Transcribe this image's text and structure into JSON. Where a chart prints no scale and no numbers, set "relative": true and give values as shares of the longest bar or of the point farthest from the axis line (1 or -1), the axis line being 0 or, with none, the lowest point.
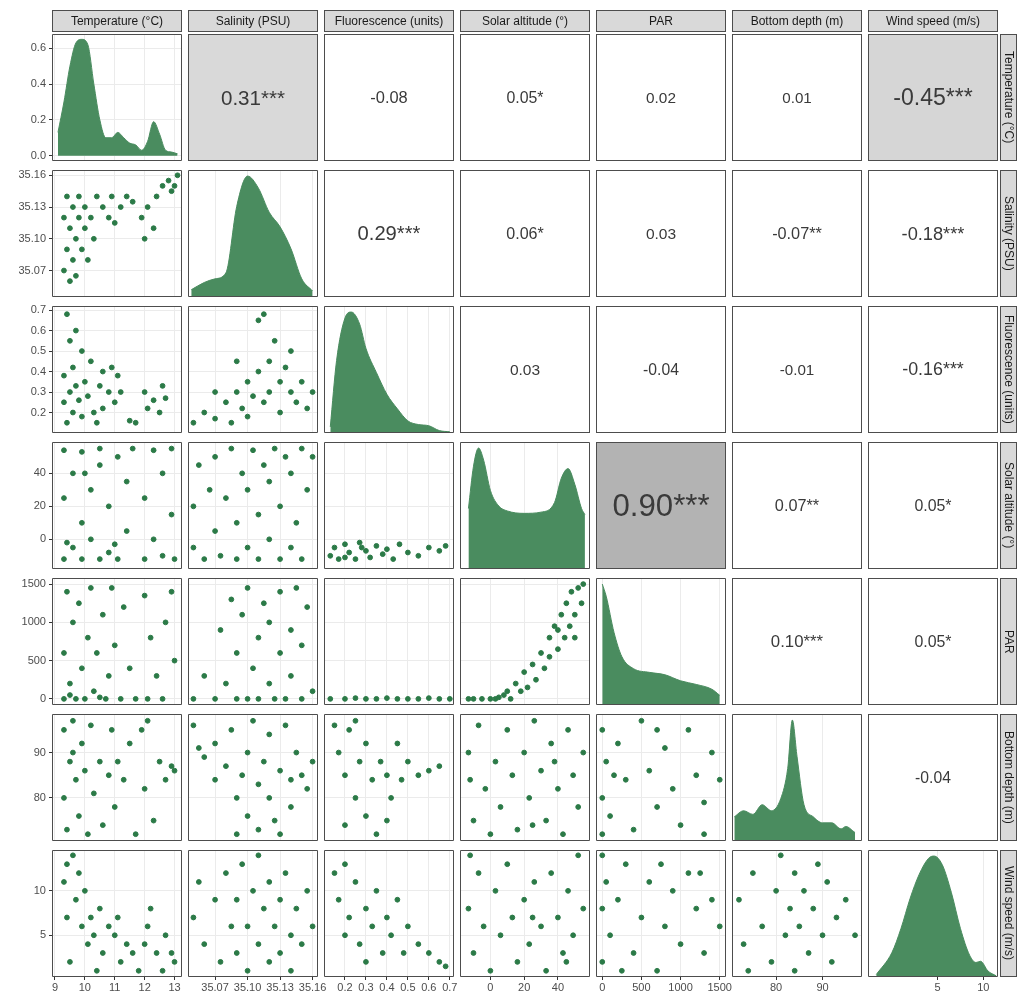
{
  "chart_data": [
    {
      "type": "area",
      "color": "#4a8c5f",
      "x": [
        9.1,
        9.3,
        9.5,
        9.7,
        9.9,
        10.1,
        10.3,
        10.5,
        10.7,
        10.9,
        11.1,
        11.3,
        11.5,
        11.7,
        11.9,
        12.1,
        12.3,
        12.5,
        12.7,
        12.9,
        13.1
      ],
      "values": [
        0.13,
        0.3,
        0.5,
        0.63,
        0.65,
        0.62,
        0.4,
        0.2,
        0.1,
        0.1,
        0.13,
        0.1,
        0.07,
        0.06,
        0.03,
        0.08,
        0.19,
        0.12,
        0.03,
        0.02,
        0.01
      ],
      "xlim": [
        8.9,
        13.25
      ],
      "xticks": [
        9,
        10,
        11,
        12,
        13
      ],
      "ylim": [
        -0.03,
        0.68
      ],
      "yticks": [
        {
          "value": 0,
          "label": "0.0"
        },
        0.2,
        0.4,
        0.6
      ],
      "tick_labels": "y",
      "grid": true
    },
    {
      "type": "scatter",
      "color": "#2b7a47",
      "marker": "circle",
      "x": [
        9.3,
        9.3,
        9.4,
        9.4,
        9.5,
        9.5,
        9.6,
        9.6,
        9.7,
        9.7,
        9.8,
        9.8,
        9.9,
        10.0,
        10.0,
        10.1,
        10.2,
        10.3,
        10.4,
        10.6,
        10.8,
        10.9,
        11.0,
        11.2,
        11.4,
        11.6,
        11.9,
        12.0,
        12.1,
        12.3,
        12.4,
        12.6,
        12.8,
        13.0,
        13.1,
        12.9
      ],
      "values": [
        35.07,
        35.12,
        35.09,
        35.14,
        35.06,
        35.11,
        35.13,
        35.08,
        35.1,
        35.065,
        35.12,
        35.14,
        35.09,
        35.11,
        35.13,
        35.08,
        35.12,
        35.1,
        35.14,
        35.13,
        35.12,
        35.14,
        35.115,
        35.13,
        35.14,
        35.135,
        35.12,
        35.1,
        35.13,
        35.11,
        35.14,
        35.15,
        35.155,
        35.15,
        35.16,
        35.145
      ],
      "xlim": [
        8.9,
        13.25
      ],
      "xticks": [
        9,
        10,
        11,
        12,
        13
      ],
      "ylim": [
        35.045,
        35.165
      ],
      "yticks": [
        35.07,
        {
          "value": 35.1,
          "label": "35.10"
        },
        35.13,
        35.16
      ],
      "tick_labels": "y",
      "grid": true
    },
    {
      "type": "area",
      "color": "#4a8c5f",
      "relative": true,
      "x": [
        35.048,
        35.06,
        35.07,
        35.08,
        35.09,
        35.1,
        35.11,
        35.12,
        35.13,
        35.14,
        35.15,
        35.16
      ],
      "values": [
        0.06,
        0.12,
        0.15,
        0.2,
        0.75,
        1,
        0.9,
        0.7,
        0.58,
        0.4,
        0.15,
        0.05
      ],
      "xlim": [
        35.045,
        35.165
      ],
      "xticks": [
        35.07,
        35.1,
        35.13,
        35.16
      ],
      "tick_labels": false,
      "grid": "x"
    },
    {
      "type": "scatter",
      "color": "#2b7a47",
      "marker": "circle",
      "x": [
        9.3,
        9.3,
        9.4,
        9.4,
        9.5,
        9.5,
        9.6,
        9.6,
        9.7,
        9.8,
        9.9,
        9.9,
        10.0,
        10.1,
        10.2,
        10.3,
        10.5,
        10.6,
        10.6,
        10.8,
        10.9,
        11.0,
        11.1,
        11.2,
        11.5,
        11.7,
        12.0,
        12.1,
        12.3,
        12.5,
        12.6,
        12.7,
        10.4,
        9.7
      ],
      "values": [
        0.38,
        0.25,
        0.68,
        0.15,
        0.3,
        0.55,
        0.2,
        0.42,
        0.33,
        0.26,
        0.5,
        0.18,
        0.35,
        0.28,
        0.45,
        0.2,
        0.33,
        0.4,
        0.22,
        0.3,
        0.42,
        0.25,
        0.38,
        0.3,
        0.16,
        0.15,
        0.3,
        0.22,
        0.26,
        0.2,
        0.33,
        0.27,
        0.15,
        0.6
      ],
      "xlim": [
        8.9,
        13.25
      ],
      "xticks": [
        9,
        10,
        11,
        12,
        13
      ],
      "ylim": [
        0.1,
        0.72
      ],
      "yticks": [
        0.2,
        0.3,
        0.4,
        0.5,
        0.6,
        0.7
      ],
      "tick_labels": "y",
      "grid": true
    },
    {
      "type": "scatter",
      "color": "#2b7a47",
      "marker": "circle",
      "x": [
        35.05,
        35.06,
        35.07,
        35.08,
        35.085,
        35.09,
        35.095,
        35.1,
        35.1,
        35.105,
        35.11,
        35.11,
        35.115,
        35.12,
        35.12,
        35.125,
        35.13,
        35.13,
        35.135,
        35.14,
        35.14,
        35.145,
        35.15,
        35.155,
        35.16,
        35.07,
        35.115,
        35.09
      ],
      "values": [
        0.15,
        0.2,
        0.17,
        0.25,
        0.15,
        0.3,
        0.22,
        0.35,
        0.18,
        0.28,
        0.4,
        0.65,
        0.25,
        0.45,
        0.3,
        0.55,
        0.35,
        0.2,
        0.42,
        0.3,
        0.5,
        0.25,
        0.35,
        0.22,
        0.3,
        0.3,
        0.68,
        0.45
      ],
      "xlim": [
        35.045,
        35.165
      ],
      "xticks": [
        35.07,
        35.1,
        35.13,
        35.16
      ],
      "ylim": [
        0.1,
        0.72
      ],
      "yticks": [
        0.2,
        0.3,
        0.4,
        0.5,
        0.6,
        0.7
      ],
      "tick_labels": false,
      "grid": true
    },
    {
      "type": "area",
      "color": "#4a8c5f",
      "relative": true,
      "x": [
        0.13,
        0.16,
        0.2,
        0.23,
        0.27,
        0.3,
        0.35,
        0.4,
        0.45,
        0.5,
        0.55,
        0.6,
        0.65,
        0.7
      ],
      "values": [
        0.05,
        0.6,
        0.95,
        1,
        0.9,
        0.7,
        0.5,
        0.32,
        0.2,
        0.1,
        0.07,
        0.06,
        0.02,
        0.01
      ],
      "xlim": [
        0.1,
        0.72
      ],
      "xticks": [
        0.2,
        0.3,
        0.4,
        0.5,
        0.6,
        0.7
      ],
      "tick_labels": false,
      "grid": "x"
    },
    {
      "type": "scatter",
      "color": "#2b7a47",
      "marker": "circle",
      "x": [
        9.3,
        9.3,
        9.3,
        9.6,
        9.6,
        9.9,
        9.9,
        9.9,
        10.2,
        10.2,
        10.5,
        10.5,
        10.5,
        10.8,
        10.8,
        11.1,
        11.1,
        11.4,
        11.4,
        11.6,
        12.0,
        12.0,
        12.3,
        12.3,
        12.6,
        12.6,
        12.9,
        12.9,
        13.0,
        9.4,
        10.0,
        11.0
      ],
      "values": [
        -12,
        25,
        54,
        -5,
        40,
        -12,
        10,
        53,
        0,
        30,
        -12,
        45,
        55,
        -8,
        20,
        -12,
        50,
        5,
        35,
        55,
        -12,
        25,
        54,
        0,
        -10,
        40,
        55,
        15,
        -12,
        -2,
        40,
        -3
      ],
      "xlim": [
        8.9,
        13.25
      ],
      "xticks": [
        9,
        10,
        11,
        12,
        13
      ],
      "ylim": [
        -18,
        59
      ],
      "yticks": [
        0,
        20,
        40
      ],
      "tick_labels": "y",
      "grid": true
    },
    {
      "type": "scatter",
      "color": "#2b7a47",
      "marker": "circle",
      "x": [
        35.05,
        35.05,
        35.055,
        35.06,
        35.065,
        35.07,
        35.07,
        35.075,
        35.08,
        35.085,
        35.09,
        35.09,
        35.095,
        35.1,
        35.1,
        35.105,
        35.11,
        35.11,
        35.115,
        35.12,
        35.12,
        35.125,
        35.13,
        35.13,
        35.135,
        35.14,
        35.14,
        35.145,
        35.15,
        35.15,
        35.155,
        35.16
      ],
      "values": [
        20,
        -5,
        45,
        -12,
        30,
        5,
        50,
        -10,
        25,
        55,
        -12,
        10,
        40,
        -5,
        30,
        54,
        -12,
        15,
        45,
        0,
        35,
        55,
        -12,
        20,
        50,
        -5,
        40,
        10,
        55,
        -12,
        30,
        50
      ],
      "xlim": [
        35.045,
        35.165
      ],
      "xticks": [
        35.07,
        35.1,
        35.13,
        35.16
      ],
      "ylim": [
        -18,
        59
      ],
      "yticks": [
        0,
        20,
        40
      ],
      "tick_labels": false,
      "grid": true
    },
    {
      "type": "scatter",
      "color": "#2b7a47",
      "marker": "circle",
      "x": [
        0.13,
        0.15,
        0.17,
        0.2,
        0.22,
        0.25,
        0.27,
        0.3,
        0.32,
        0.35,
        0.38,
        0.4,
        0.43,
        0.46,
        0.5,
        0.55,
        0.6,
        0.65,
        0.68,
        0.2,
        0.28
      ],
      "values": [
        -10,
        -5,
        -12,
        -3,
        -8,
        -12,
        -2,
        -7,
        -11,
        -4,
        -9,
        -6,
        -12,
        -3,
        -8,
        -10,
        -5,
        -7,
        -4,
        -11,
        -5
      ],
      "xlim": [
        0.1,
        0.72
      ],
      "xticks": [
        0.2,
        0.3,
        0.4,
        0.5,
        0.6,
        0.7
      ],
      "ylim": [
        -18,
        59
      ],
      "yticks": [
        0,
        20,
        40
      ],
      "tick_labels": false,
      "grid": true
    },
    {
      "type": "area",
      "color": "#4a8c5f",
      "relative": true,
      "x": [
        -13,
        -10,
        -7,
        -4,
        0,
        5,
        10,
        20,
        30,
        38,
        42,
        46,
        50,
        54,
        56
      ],
      "values": [
        0.5,
        0.85,
        1,
        0.9,
        0.65,
        0.52,
        0.48,
        0.46,
        0.47,
        0.55,
        0.75,
        0.83,
        0.7,
        0.5,
        0.45
      ],
      "xlim": [
        -18,
        59
      ],
      "xticks": [
        0,
        20,
        40
      ],
      "tick_labels": false,
      "grid": "x"
    },
    {
      "type": "scatter",
      "color": "#2b7a47",
      "marker": "circle",
      "x": [
        9.3,
        9.3,
        9.4,
        9.5,
        9.6,
        9.7,
        9.8,
        9.9,
        10.0,
        10.1,
        10.2,
        10.3,
        10.4,
        10.6,
        10.7,
        10.8,
        10.9,
        11.0,
        11.2,
        11.3,
        11.5,
        11.7,
        12.0,
        12.1,
        12.2,
        12.4,
        12.6,
        12.7,
        12.9,
        13.0,
        9.5,
        10.5
      ],
      "values": [
        0,
        600,
        1400,
        200,
        1000,
        0,
        1250,
        400,
        0,
        800,
        1450,
        100,
        600,
        1100,
        0,
        300,
        1450,
        700,
        0,
        1200,
        400,
        0,
        1350,
        0,
        800,
        300,
        0,
        1000,
        1400,
        500,
        50,
        20
      ],
      "xlim": [
        8.9,
        13.25
      ],
      "xticks": [
        9,
        10,
        11,
        12,
        13
      ],
      "ylim": [
        -80,
        1580
      ],
      "yticks": [
        0,
        500,
        1000,
        1500
      ],
      "tick_labels": "y",
      "grid": true
    },
    {
      "type": "scatter",
      "color": "#2b7a47",
      "marker": "circle",
      "x": [
        35.05,
        35.06,
        35.07,
        35.075,
        35.08,
        35.085,
        35.09,
        35.09,
        35.095,
        35.1,
        35.1,
        35.105,
        35.11,
        35.11,
        35.115,
        35.12,
        35.12,
        35.125,
        35.13,
        35.13,
        35.135,
        35.14,
        35.14,
        35.145,
        35.15,
        35.15,
        35.155,
        35.16
      ],
      "values": [
        0,
        300,
        0,
        900,
        200,
        1300,
        0,
        600,
        1100,
        0,
        1450,
        400,
        800,
        0,
        1250,
        200,
        1000,
        0,
        600,
        1400,
        0,
        300,
        900,
        1450,
        0,
        700,
        1200,
        100
      ],
      "xlim": [
        35.045,
        35.165
      ],
      "xticks": [
        35.07,
        35.1,
        35.13,
        35.16
      ],
      "ylim": [
        -80,
        1580
      ],
      "yticks": [
        0,
        500,
        1000,
        1500
      ],
      "tick_labels": false,
      "grid": true
    },
    {
      "type": "scatter",
      "color": "#2b7a47",
      "marker": "circle",
      "x": [
        0.13,
        0.2,
        0.25,
        0.3,
        0.35,
        0.4,
        0.45,
        0.5,
        0.55,
        0.6,
        0.65,
        0.7
      ],
      "values": [
        0,
        0,
        10,
        0,
        0,
        10,
        0,
        0,
        0,
        10,
        0,
        0
      ],
      "xlim": [
        0.1,
        0.72
      ],
      "xticks": [
        0.2,
        0.3,
        0.4,
        0.5,
        0.6,
        0.7
      ],
      "ylim": [
        -80,
        1580
      ],
      "yticks": [
        0,
        500,
        1000,
        1500
      ],
      "tick_labels": false,
      "grid": true
    },
    {
      "type": "scatter",
      "color": "#2b7a47",
      "marker": "circle",
      "x": [
        -13,
        -10,
        -5,
        0,
        3,
        5,
        8,
        10,
        12,
        15,
        18,
        20,
        22,
        25,
        27,
        30,
        32,
        35,
        35,
        38,
        40,
        42,
        44,
        45,
        47,
        48,
        50,
        52,
        54,
        55,
        50,
        40
      ],
      "values": [
        0,
        0,
        0,
        0,
        0,
        20,
        50,
        100,
        0,
        200,
        100,
        350,
        150,
        450,
        250,
        600,
        400,
        800,
        550,
        950,
        650,
        1100,
        800,
        1250,
        950,
        1400,
        1100,
        1450,
        1250,
        1500,
        800,
        900
      ],
      "xlim": [
        -18,
        59
      ],
      "xticks": [
        0,
        20,
        40
      ],
      "ylim": [
        -80,
        1580
      ],
      "yticks": [
        0,
        500,
        1000,
        1500
      ],
      "tick_labels": false,
      "grid": true
    },
    {
      "type": "area",
      "color": "#4a8c5f",
      "relative": true,
      "x": [
        0,
        50,
        150,
        250,
        400,
        600,
        800,
        1000,
        1200,
        1400,
        1500
      ],
      "values": [
        1,
        0.9,
        0.6,
        0.4,
        0.3,
        0.27,
        0.25,
        0.2,
        0.17,
        0.13,
        0.08
      ],
      "xlim": [
        -80,
        1580
      ],
      "xticks": [
        0,
        500,
        1000,
        1500
      ],
      "tick_labels": false,
      "grid": "x"
    },
    {
      "type": "scatter",
      "color": "#2b7a47",
      "marker": "circle",
      "x": [
        9.3,
        9.3,
        9.4,
        9.5,
        9.6,
        9.7,
        9.8,
        9.9,
        10.0,
        10.1,
        10.2,
        10.3,
        10.5,
        10.6,
        10.8,
        10.9,
        11.0,
        11.1,
        11.3,
        11.5,
        11.7,
        11.9,
        12.0,
        12.1,
        12.3,
        12.5,
        12.7,
        12.9,
        13.0,
        9.6
      ],
      "values": [
        95,
        80,
        73,
        88,
        97,
        84,
        76,
        92,
        86,
        72,
        96,
        81,
        88,
        74,
        85,
        95,
        78,
        88,
        84,
        92,
        72,
        95,
        82,
        97,
        75,
        88,
        84,
        87,
        86,
        90
      ],
      "xlim": [
        8.9,
        13.25
      ],
      "xticks": [
        9,
        10,
        11,
        12,
        13
      ],
      "ylim": [
        70.5,
        98.5
      ],
      "yticks": [
        80,
        90
      ],
      "tick_labels": "y",
      "grid": true
    },
    {
      "type": "scatter",
      "color": "#2b7a47",
      "marker": "circle",
      "x": [
        35.05,
        35.055,
        35.06,
        35.07,
        35.08,
        35.085,
        35.09,
        35.09,
        35.095,
        35.1,
        35.1,
        35.105,
        35.11,
        35.11,
        35.115,
        35.12,
        35.12,
        35.125,
        35.13,
        35.13,
        35.135,
        35.14,
        35.14,
        35.145,
        35.15,
        35.155,
        35.16,
        35.07
      ],
      "values": [
        96,
        91,
        89,
        92,
        87,
        95,
        80,
        72,
        85,
        90,
        76,
        97,
        83,
        73,
        88,
        80,
        94,
        75,
        86,
        72,
        96,
        84,
        78,
        90,
        85,
        82,
        88,
        84
      ],
      "xlim": [
        35.045,
        35.165
      ],
      "xticks": [
        35.07,
        35.1,
        35.13,
        35.16
      ],
      "ylim": [
        70.5,
        98.5
      ],
      "yticks": [
        80,
        90
      ],
      "tick_labels": false,
      "grid": true
    },
    {
      "type": "scatter",
      "color": "#2b7a47",
      "marker": "circle",
      "x": [
        0.15,
        0.17,
        0.2,
        0.2,
        0.22,
        0.25,
        0.27,
        0.3,
        0.3,
        0.33,
        0.35,
        0.37,
        0.4,
        0.42,
        0.45,
        0.47,
        0.5,
        0.55,
        0.6,
        0.65,
        0.25,
        0.4
      ],
      "values": [
        96,
        90,
        85,
        74,
        95,
        80,
        88,
        76,
        92,
        84,
        72,
        88,
        85,
        80,
        92,
        84,
        88,
        85,
        86,
        87,
        97,
        75
      ],
      "xlim": [
        0.1,
        0.72
      ],
      "xticks": [
        0.2,
        0.3,
        0.4,
        0.5,
        0.6,
        0.7
      ],
      "ylim": [
        70.5,
        98.5
      ],
      "yticks": [
        80,
        90
      ],
      "tick_labels": false,
      "grid": true
    },
    {
      "type": "scatter",
      "color": "#2b7a47",
      "marker": "circle",
      "x": [
        -13,
        -10,
        -7,
        -3,
        0,
        3,
        6,
        10,
        13,
        16,
        20,
        23,
        26,
        30,
        33,
        36,
        40,
        43,
        46,
        49,
        52,
        55,
        -12,
        25,
        38
      ],
      "values": [
        90,
        75,
        96,
        82,
        72,
        88,
        78,
        95,
        85,
        73,
        90,
        80,
        97,
        86,
        75,
        92,
        82,
        72,
        95,
        85,
        78,
        90,
        84,
        74,
        88
      ],
      "xlim": [
        -18,
        59
      ],
      "xticks": [
        0,
        20,
        40
      ],
      "ylim": [
        70.5,
        98.5
      ],
      "yticks": [
        80,
        90
      ],
      "tick_labels": false,
      "grid": true
    },
    {
      "type": "scatter",
      "color": "#2b7a47",
      "marker": "circle",
      "x": [
        0,
        0,
        0,
        50,
        100,
        200,
        300,
        400,
        500,
        600,
        700,
        800,
        900,
        1000,
        1100,
        1200,
        1300,
        1400,
        1500,
        150,
        700,
        1300
      ],
      "values": [
        95,
        80,
        72,
        88,
        76,
        92,
        84,
        73,
        97,
        86,
        78,
        91,
        82,
        74,
        95,
        85,
        79,
        90,
        84,
        85,
        95,
        72
      ],
      "xlim": [
        -80,
        1580
      ],
      "xticks": [
        0,
        500,
        1000,
        1500
      ],
      "ylim": [
        70.5,
        98.5
      ],
      "yticks": [
        80,
        90
      ],
      "tick_labels": false,
      "grid": true
    },
    {
      "type": "area",
      "color": "#4a8c5f",
      "relative": true,
      "x": [
        71,
        73,
        75,
        77,
        79,
        81,
        82.5,
        83.5,
        84.5,
        86,
        88,
        90,
        92,
        94,
        95,
        97
      ],
      "values": [
        0.2,
        0.25,
        0.22,
        0.3,
        0.25,
        0.35,
        0.6,
        1,
        0.7,
        0.3,
        0.2,
        0.15,
        0.15,
        0.1,
        0.12,
        0.07
      ],
      "xlim": [
        70.5,
        98.5
      ],
      "xticks": [
        80,
        90
      ],
      "tick_labels": false,
      "grid": "x"
    },
    {
      "type": "scatter",
      "color": "#2b7a47",
      "marker": "circle",
      "x": [
        9.3,
        9.4,
        9.6,
        9.7,
        9.8,
        9.9,
        10.0,
        10.1,
        10.2,
        10.3,
        10.5,
        10.6,
        10.8,
        11.0,
        11.1,
        11.2,
        11.4,
        11.6,
        11.8,
        12.0,
        12.1,
        12.2,
        12.4,
        12.6,
        12.7,
        12.9,
        13.0,
        9.5,
        10.4,
        9.4
      ],
      "values": [
        11,
        13,
        14,
        9,
        12,
        6,
        10,
        4,
        7,
        5,
        8,
        3,
        6,
        5,
        7,
        2,
        4,
        3,
        1,
        4,
        6,
        8,
        3,
        1,
        5,
        3,
        2,
        2,
        1,
        7
      ],
      "xlim": [
        8.9,
        13.25
      ],
      "xticks": [
        9,
        10,
        11,
        12,
        13
      ],
      "ylim": [
        0.3,
        14.6
      ],
      "yticks": [
        5,
        10
      ],
      "grid": true
    },
    {
      "type": "scatter",
      "color": "#2b7a47",
      "marker": "circle",
      "x": [
        35.05,
        35.055,
        35.06,
        35.07,
        35.075,
        35.08,
        35.085,
        35.09,
        35.09,
        35.095,
        35.1,
        35.1,
        35.105,
        35.11,
        35.11,
        35.115,
        35.12,
        35.12,
        35.125,
        35.13,
        35.13,
        35.135,
        35.14,
        35.14,
        35.145,
        35.15,
        35.155,
        35.16
      ],
      "values": [
        7,
        11,
        4,
        9,
        2,
        12,
        6,
        3,
        9,
        13,
        1,
        6,
        10,
        4,
        14,
        8,
        2,
        11,
        6,
        3,
        9,
        12,
        5,
        1,
        8,
        4,
        10,
        6
      ],
      "xlim": [
        35.045,
        35.165
      ],
      "xticks": [
        35.07,
        {
          "value": 35.1,
          "label": "35.10"
        },
        35.13,
        35.16
      ],
      "ylim": [
        0.3,
        14.6
      ],
      "yticks": [
        5,
        10
      ],
      "tick_labels": "x",
      "grid": true
    },
    {
      "type": "scatter",
      "color": "#2b7a47",
      "marker": "circle",
      "x": [
        0.15,
        0.17,
        0.2,
        0.22,
        0.25,
        0.27,
        0.3,
        0.3,
        0.33,
        0.35,
        0.38,
        0.4,
        0.42,
        0.45,
        0.48,
        0.5,
        0.55,
        0.6,
        0.65,
        0.68,
        0.2
      ],
      "values": [
        12,
        9,
        13,
        7,
        11,
        4,
        8,
        2,
        6,
        10,
        3,
        7,
        5,
        9,
        3,
        6,
        4,
        3,
        2,
        1.5,
        5
      ],
      "xlim": [
        0.1,
        0.72
      ],
      "xticks": [
        0.2,
        0.3,
        0.4,
        0.5,
        0.6,
        0.7
      ],
      "ylim": [
        0.3,
        14.6
      ],
      "yticks": [
        5,
        10
      ],
      "tick_labels": "x",
      "grid": true
    },
    {
      "type": "scatter",
      "color": "#2b7a47",
      "marker": "circle",
      "x": [
        -13,
        -10,
        -7,
        -4,
        0,
        3,
        6,
        10,
        13,
        16,
        20,
        23,
        26,
        30,
        33,
        36,
        40,
        43,
        46,
        49,
        52,
        55,
        -12,
        25,
        45
      ],
      "values": [
        8,
        3,
        12,
        6,
        1,
        10,
        5,
        13,
        7,
        2,
        9,
        4,
        11,
        6,
        1,
        12,
        7,
        3,
        10,
        5,
        14,
        8,
        14,
        7,
        2
      ],
      "xlim": [
        -18,
        59
      ],
      "xticks": [
        0,
        20,
        40
      ],
      "ylim": [
        0.3,
        14.6
      ],
      "yticks": [
        5,
        10
      ],
      "tick_labels": "x",
      "grid": true
    },
    {
      "type": "scatter",
      "color": "#2b7a47",
      "marker": "circle",
      "x": [
        0,
        0,
        0,
        50,
        100,
        200,
        300,
        400,
        500,
        600,
        700,
        800,
        900,
        1000,
        1100,
        1200,
        1300,
        1400,
        1500,
        250,
        750,
        1250
      ],
      "values": [
        14,
        8,
        2,
        11,
        5,
        9,
        13,
        3,
        7,
        11,
        1,
        6,
        10,
        4,
        12,
        8,
        3,
        9,
        6,
        1,
        13,
        12
      ],
      "xlim": [
        -80,
        1580
      ],
      "xticks": [
        0,
        500,
        1000,
        1500
      ],
      "ylim": [
        0.3,
        14.6
      ],
      "yticks": [
        5,
        10
      ],
      "tick_labels": "x",
      "grid": true
    },
    {
      "type": "scatter",
      "color": "#2b7a47",
      "marker": "circle",
      "x": [
        72,
        73,
        75,
        77,
        79,
        80,
        81,
        82,
        83,
        84,
        84,
        85,
        86,
        87,
        88,
        90,
        91,
        92,
        93,
        95,
        97,
        74,
        89
      ],
      "values": [
        9,
        4,
        12,
        6,
        2,
        10,
        14,
        5,
        8,
        12,
        1,
        6,
        10,
        3,
        8,
        5,
        11,
        2,
        7,
        9,
        5,
        1,
        13
      ],
      "xlim": [
        70.5,
        98.5
      ],
      "xticks": [
        80,
        90
      ],
      "ylim": [
        0.3,
        14.6
      ],
      "yticks": [
        5,
        10
      ],
      "tick_labels": "x",
      "grid": true
    },
    {
      "type": "area",
      "color": "#4a8c5f",
      "relative": true,
      "x": [
        -1.7,
        0,
        1,
        2,
        3,
        4,
        4.6,
        5.5,
        6.5,
        7.5,
        8.5,
        9.2,
        9.7,
        10.5,
        11.4
      ],
      "values": [
        0.02,
        0.2,
        0.4,
        0.65,
        0.85,
        0.98,
        1,
        0.93,
        0.7,
        0.4,
        0.18,
        0.12,
        0.13,
        0.05,
        0.01
      ],
      "xlim": [
        -2.6,
        11.6
      ],
      "xticks": [
        5,
        10
      ],
      "tick_labels": "x",
      "grid": "x"
    },
    {
      "type": "heatmap",
      "categories": [
        "Temperature (°C)",
        "Salinity (PSU)",
        "Fluorescence (units)",
        "Solar altitude (°)",
        "PAR",
        "Bottom depth (m)",
        "Wind speed (m/s)"
      ],
      "y_categories": [
        "Temperature (°C)",
        "Salinity (PSU)",
        "Fluorescence (units)",
        "Solar altitude (°)",
        "PAR",
        "Bottom depth (m)",
        "Wind speed (m/s)"
      ],
      "cells": [
        [
          null,
          0.31,
          -0.08,
          0.05,
          0.02,
          0.01,
          -0.45
        ],
        [
          null,
          null,
          0.29,
          0.06,
          0.03,
          -0.07,
          -0.18
        ],
        [
          null,
          null,
          null,
          0.03,
          -0.04,
          -0.01,
          -0.16
        ],
        [
          null,
          null,
          null,
          null,
          0.9,
          0.07,
          0.05
        ],
        [
          null,
          null,
          null,
          null,
          null,
          0.1,
          0.05
        ],
        [
          null,
          null,
          null,
          null,
          null,
          null,
          -0.04
        ],
        [
          null,
          null,
          null,
          null,
          null,
          null,
          null
        ]
      ],
      "cell_labels": [
        [
          null,
          "0.31***",
          "-0.08",
          "0.05*",
          "0.02",
          "0.01",
          "-0.45***"
        ],
        [
          null,
          null,
          "0.29***",
          "0.06*",
          "0.03",
          "-0.07**",
          "-0.18***"
        ],
        [
          null,
          null,
          null,
          "0.03",
          "-0.04",
          "-0.01",
          "-0.16***"
        ],
        [
          null,
          null,
          null,
          null,
          "0.90***",
          "0.07**",
          "0.05*"
        ],
        [
          null,
          null,
          null,
          null,
          null,
          "0.10***",
          "0.05*"
        ],
        [
          null,
          null,
          null,
          null,
          null,
          null,
          "-0.04"
        ],
        [
          null,
          null,
          null,
          null,
          null,
          null,
          null
        ]
      ],
      "colors": [
        [
          null,
          "#d9d9d9",
          "#ffffff",
          "#ffffff",
          "#ffffff",
          "#ffffff",
          "#d6d6d6"
        ],
        [
          null,
          null,
          "#ffffff",
          "#ffffff",
          "#ffffff",
          "#ffffff",
          "#ffffff"
        ],
        [
          null,
          null,
          null,
          "#ffffff",
          "#ffffff",
          "#ffffff",
          "#ffffff"
        ],
        [
          null,
          null,
          null,
          null,
          "#b3b3b3",
          "#ffffff",
          "#ffffff"
        ],
        [
          null,
          null,
          null,
          null,
          null,
          "#ffffff",
          "#ffffff"
        ],
        [
          null,
          null,
          null,
          null,
          null,
          null,
          "#ffffff"
        ],
        [
          null,
          null,
          null,
          null,
          null,
          null,
          null
        ]
      ]
    }
  ]
}
